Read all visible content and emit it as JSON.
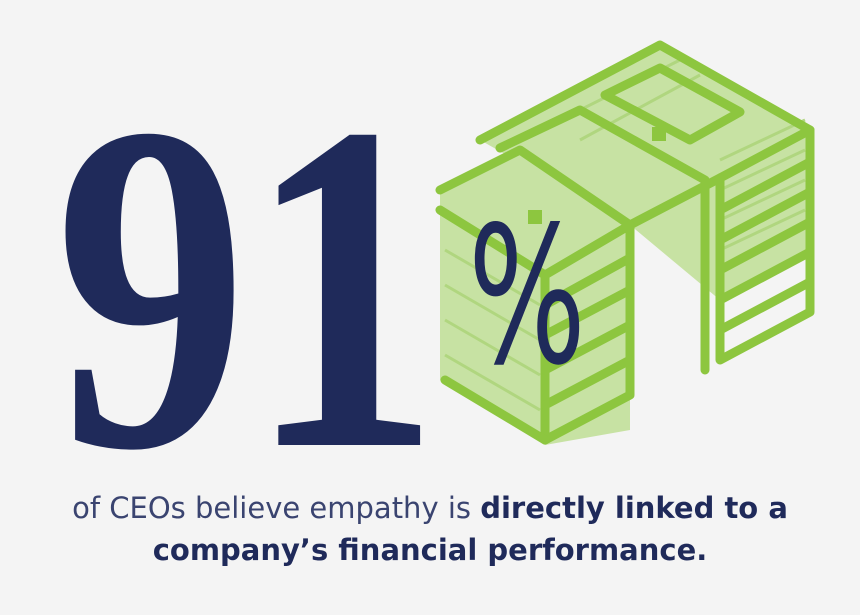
{
  "headline": {
    "number": "91",
    "unit": "%"
  },
  "caption": {
    "lines": [
      {
        "plain": "of CEOs believe empathy is",
        "bold": "directly linked to a"
      },
      {
        "bold": "company’s financial performance."
      }
    ]
  }
}
